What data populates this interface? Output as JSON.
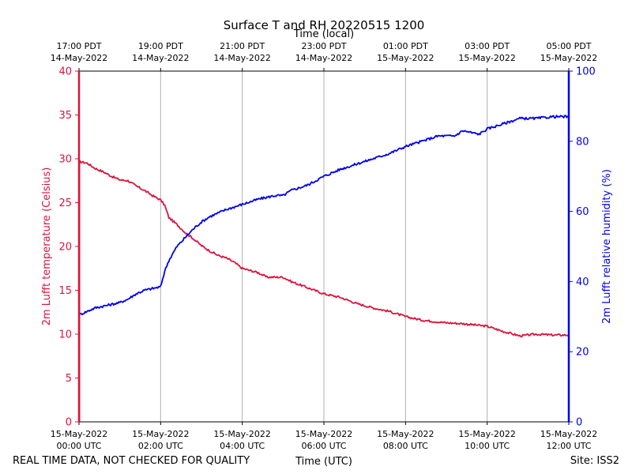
{
  "chart_data": {
    "type": "line",
    "title": "Surface T and RH 20220515 1200",
    "top_xlabel": "Time (local)",
    "xlabel": "Time (UTC)",
    "ylabel_left": "2m Lufft temperature (Celsius)",
    "ylabel_right": "2m Lufft relative humidity (%)",
    "footer_left": "REAL TIME DATA, NOT CHECKED FOR QUALITY",
    "footer_right": "Site: ISS2",
    "xlim_hours": [
      0,
      12
    ],
    "ylim_left": [
      0,
      40
    ],
    "ylim_right": [
      0,
      100
    ],
    "yticks_left": [
      0,
      5,
      10,
      15,
      20,
      25,
      30,
      35,
      40
    ],
    "yticks_right": [
      0,
      20,
      40,
      60,
      80,
      100
    ],
    "xticks_utc": [
      {
        "hour": 0,
        "date": "15-May-2022",
        "time": "00:00 UTC"
      },
      {
        "hour": 2,
        "date": "15-May-2022",
        "time": "02:00 UTC"
      },
      {
        "hour": 4,
        "date": "15-May-2022",
        "time": "04:00 UTC"
      },
      {
        "hour": 6,
        "date": "15-May-2022",
        "time": "06:00 UTC"
      },
      {
        "hour": 8,
        "date": "15-May-2022",
        "time": "08:00 UTC"
      },
      {
        "hour": 10,
        "date": "15-May-2022",
        "time": "10:00 UTC"
      },
      {
        "hour": 12,
        "date": "15-May-2022",
        "time": "12:00 UTC"
      }
    ],
    "xticks_local": [
      {
        "hour": 0,
        "time": "17:00 PDT",
        "date": "14-May-2022"
      },
      {
        "hour": 2,
        "time": "19:00 PDT",
        "date": "14-May-2022"
      },
      {
        "hour": 4,
        "time": "21:00 PDT",
        "date": "14-May-2022"
      },
      {
        "hour": 6,
        "time": "23:00 PDT",
        "date": "14-May-2022"
      },
      {
        "hour": 8,
        "time": "01:00 PDT",
        "date": "15-May-2022"
      },
      {
        "hour": 10,
        "time": "03:00 PDT",
        "date": "15-May-2022"
      },
      {
        "hour": 12,
        "time": "05:00 PDT",
        "date": "15-May-2022"
      }
    ],
    "series": [
      {
        "name": "2m Lufft temperature",
        "axis": "left",
        "color": "#dc143c",
        "points": [
          [
            0,
            29.7
          ],
          [
            0.2,
            29.5
          ],
          [
            0.4,
            28.9
          ],
          [
            0.6,
            28.5
          ],
          [
            0.8,
            28.0
          ],
          [
            1.0,
            27.6
          ],
          [
            1.2,
            27.5
          ],
          [
            1.4,
            26.9
          ],
          [
            1.6,
            26.4
          ],
          [
            1.8,
            25.8
          ],
          [
            2.0,
            25.3
          ],
          [
            2.1,
            24.7
          ],
          [
            2.2,
            23.3
          ],
          [
            2.4,
            22.5
          ],
          [
            2.6,
            21.6
          ],
          [
            2.8,
            20.9
          ],
          [
            3.0,
            20.1
          ],
          [
            3.2,
            19.5
          ],
          [
            3.4,
            19.0
          ],
          [
            3.6,
            18.7
          ],
          [
            3.8,
            18.2
          ],
          [
            4.0,
            17.5
          ],
          [
            4.4,
            17.0
          ],
          [
            4.6,
            16.5
          ],
          [
            5.0,
            16.5
          ],
          [
            5.2,
            16.0
          ],
          [
            5.6,
            15.3
          ],
          [
            6.0,
            14.6
          ],
          [
            6.4,
            14.2
          ],
          [
            6.8,
            13.5
          ],
          [
            7.2,
            13.0
          ],
          [
            7.6,
            12.6
          ],
          [
            8.0,
            12.0
          ],
          [
            8.4,
            11.6
          ],
          [
            9.0,
            11.3
          ],
          [
            9.4,
            11.2
          ],
          [
            10.0,
            10.9
          ],
          [
            10.4,
            10.3
          ],
          [
            10.8,
            9.8
          ],
          [
            11.2,
            10.0
          ],
          [
            11.6,
            9.9
          ],
          [
            12.0,
            9.9
          ]
        ]
      },
      {
        "name": "2m Lufft relative humidity",
        "axis": "right",
        "color": "#0000ee",
        "points": [
          [
            0,
            30.5
          ],
          [
            0.2,
            31.5
          ],
          [
            0.4,
            32.5
          ],
          [
            0.6,
            33.0
          ],
          [
            0.8,
            33.5
          ],
          [
            1.0,
            34.0
          ],
          [
            1.2,
            35.0
          ],
          [
            1.4,
            36.5
          ],
          [
            1.6,
            37.5
          ],
          [
            1.8,
            38.0
          ],
          [
            2.0,
            38.5
          ],
          [
            2.1,
            43.0
          ],
          [
            2.2,
            46.0
          ],
          [
            2.4,
            50.0
          ],
          [
            2.6,
            52.5
          ],
          [
            2.8,
            55.0
          ],
          [
            3.0,
            57.0
          ],
          [
            3.2,
            58.5
          ],
          [
            3.4,
            59.5
          ],
          [
            3.6,
            60.5
          ],
          [
            4.0,
            62.0
          ],
          [
            4.4,
            63.5
          ],
          [
            4.8,
            64.5
          ],
          [
            5.0,
            64.5
          ],
          [
            5.2,
            66.0
          ],
          [
            5.6,
            67.5
          ],
          [
            6.0,
            70.0
          ],
          [
            6.4,
            72.0
          ],
          [
            6.8,
            73.5
          ],
          [
            7.2,
            75.0
          ],
          [
            7.6,
            76.5
          ],
          [
            8.0,
            78.5
          ],
          [
            8.4,
            80.0
          ],
          [
            8.8,
            81.5
          ],
          [
            9.2,
            81.5
          ],
          [
            9.4,
            83.0
          ],
          [
            9.8,
            82.0
          ],
          [
            10.0,
            83.5
          ],
          [
            10.4,
            85.0
          ],
          [
            10.8,
            86.5
          ],
          [
            11.2,
            86.5
          ],
          [
            11.6,
            87.0
          ],
          [
            12.0,
            87.0
          ]
        ]
      }
    ]
  }
}
